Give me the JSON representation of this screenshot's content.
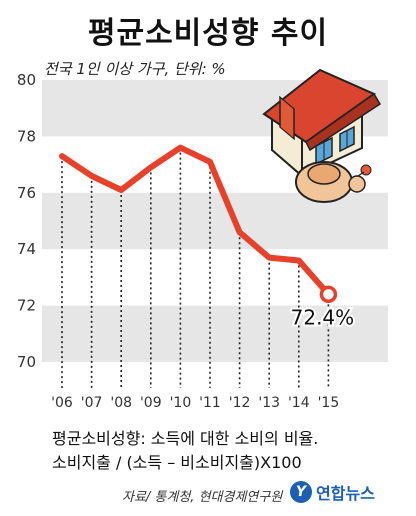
{
  "title": "평균소비성향 추이",
  "subtitle": "전국 1인 이상 가구, 단위: %",
  "chart_data": {
    "type": "line",
    "categories": [
      "'06",
      "'07",
      "'08",
      "'09",
      "'10",
      "'11",
      "'12",
      "'13",
      "'14",
      "'15"
    ],
    "values": [
      77.3,
      76.6,
      76.1,
      76.9,
      77.6,
      77.1,
      74.6,
      73.7,
      73.6,
      72.4
    ],
    "ylim": [
      70,
      80
    ],
    "yticks": [
      "70",
      "72",
      "74",
      "76",
      "78",
      "80"
    ],
    "last_label": "72.4%",
    "line_color": "#e8412b",
    "band_color": "#e6e6e6",
    "grid": true
  },
  "description": {
    "line1": "평균소비성향: 소득에 대한 소비의 비율.",
    "line2": "소비지출 / (소득 – 비소비지출)X100"
  },
  "source": "자료/ 통계청, 현대경제연구원",
  "logo": {
    "mark": "Y",
    "text": "연합뉴스"
  }
}
